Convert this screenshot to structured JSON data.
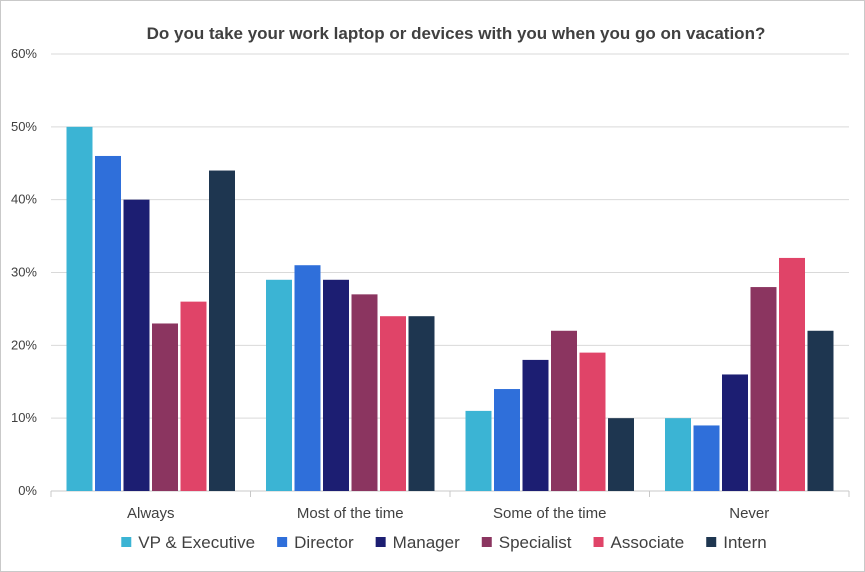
{
  "chart_data": {
    "type": "bar",
    "title": "Do you take your work laptop or devices with you when you go on vacation?",
    "xlabel": "",
    "ylabel": "",
    "ylim": [
      0,
      60
    ],
    "ytick_step": 10,
    "ytick_suffix": "%",
    "grid": true,
    "legend_position": "bottom",
    "categories": [
      "Always",
      "Most of the time",
      "Some of the time",
      "Never"
    ],
    "series": [
      {
        "name": "VP & Executive",
        "color": "#3bb4d4",
        "values": [
          50,
          29,
          11,
          10
        ]
      },
      {
        "name": "Director",
        "color": "#2f6fda",
        "values": [
          46,
          31,
          14,
          9
        ]
      },
      {
        "name": "Manager",
        "color": "#1c1e72",
        "values": [
          40,
          29,
          18,
          16
        ]
      },
      {
        "name": "Specialist",
        "color": "#8b3560",
        "values": [
          23,
          27,
          22,
          28
        ]
      },
      {
        "name": "Associate",
        "color": "#e04468",
        "values": [
          26,
          24,
          19,
          32
        ]
      },
      {
        "name": "Intern",
        "color": "#1e3650",
        "values": [
          44,
          24,
          10,
          22
        ]
      }
    ]
  }
}
